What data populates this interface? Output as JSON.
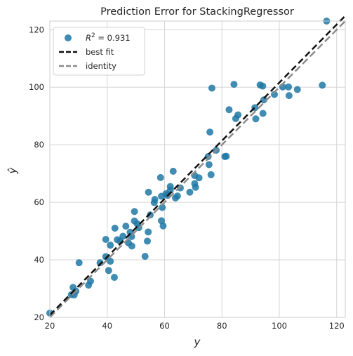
{
  "chart_data": {
    "type": "scatter",
    "title": "Prediction Error for StackingRegressor",
    "xlabel": "y",
    "ylabel": "ŷ",
    "xlim": [
      20,
      123
    ],
    "ylim": [
      20,
      123
    ],
    "xticks": [
      20,
      40,
      60,
      80,
      100,
      120
    ],
    "yticks": [
      20,
      40,
      60,
      80,
      100,
      120
    ],
    "grid": true,
    "legend_position": "top-left",
    "legend": {
      "r2_prefix": "R",
      "r2_sup": "2",
      "r2_value": " = 0.931",
      "best_fit": "best fit",
      "identity": "identity"
    },
    "colors": {
      "points": "#1f78a4",
      "best_fit": "#111111",
      "identity": "#8c8c8c",
      "grid": "#d5d5d5"
    },
    "best_fit_line": {
      "slope": 1.01,
      "intercept": 0.6
    },
    "identity_line": {
      "slope": 1.0,
      "intercept": 0.0
    },
    "points": [
      [
        20,
        21.5
      ],
      [
        27.5,
        27.9
      ],
      [
        28.1,
        30.4
      ],
      [
        28.5,
        27.8
      ],
      [
        29.1,
        29.1
      ],
      [
        30.2,
        39
      ],
      [
        33.5,
        31.2
      ],
      [
        34.2,
        32.6
      ],
      [
        37.5,
        39
      ],
      [
        39.5,
        47.1
      ],
      [
        39.5,
        41.1
      ],
      [
        40.5,
        36.3
      ],
      [
        41.1,
        39.5
      ],
      [
        41.1,
        45.1
      ],
      [
        42.5,
        33.9
      ],
      [
        42.7,
        51
      ],
      [
        43.5,
        47
      ],
      [
        44.5,
        46.5
      ],
      [
        45.5,
        48.2
      ],
      [
        46.5,
        51.7
      ],
      [
        47.4,
        45.9
      ],
      [
        48,
        49.6
      ],
      [
        48.5,
        48.1
      ],
      [
        48.6,
        44.8
      ],
      [
        49.5,
        53.5
      ],
      [
        49.5,
        56.8
      ],
      [
        50.5,
        52.5
      ],
      [
        51,
        51.2
      ],
      [
        53.2,
        41.2
      ],
      [
        54,
        46.5
      ],
      [
        54.3,
        49.7
      ],
      [
        54.4,
        63.5
      ],
      [
        55,
        55.6
      ],
      [
        56.4,
        59.9
      ],
      [
        56.6,
        61
      ],
      [
        58.6,
        68.6
      ],
      [
        58.9,
        62.1
      ],
      [
        58.9,
        53.6
      ],
      [
        59.2,
        58.2
      ],
      [
        59.5,
        51.8
      ],
      [
        60.5,
        63
      ],
      [
        61,
        62.4
      ],
      [
        62,
        65.5
      ],
      [
        62,
        64.2
      ],
      [
        63,
        70.8
      ],
      [
        63.8,
        61.5
      ],
      [
        64.5,
        62.2
      ],
      [
        65.5,
        65
      ],
      [
        68.8,
        63.5
      ],
      [
        70.5,
        66.5
      ],
      [
        70.5,
        69.3
      ],
      [
        70.8,
        65.2
      ],
      [
        72,
        68.5
      ],
      [
        75.2,
        75.9
      ],
      [
        75.5,
        73.1
      ],
      [
        75.8,
        84.4
      ],
      [
        76.2,
        69.6
      ],
      [
        76.5,
        99.7
      ],
      [
        78,
        78.1
      ],
      [
        81,
        75.9
      ],
      [
        81.5,
        76
      ],
      [
        82.5,
        92.2
      ],
      [
        84.2,
        101
      ],
      [
        84.8,
        89.1
      ],
      [
        85.6,
        90.4
      ],
      [
        91.5,
        92.9
      ],
      [
        91.8,
        89
      ],
      [
        93.3,
        100.8
      ],
      [
        94.2,
        100.4
      ],
      [
        94.3,
        90.9
      ],
      [
        94.6,
        95.6
      ],
      [
        98.3,
        97.5
      ],
      [
        101.2,
        100.1
      ],
      [
        103.2,
        100.1
      ],
      [
        103.4,
        97.1
      ],
      [
        106.3,
        99.2
      ],
      [
        115,
        100.7
      ],
      [
        116.5,
        123
      ]
    ]
  }
}
